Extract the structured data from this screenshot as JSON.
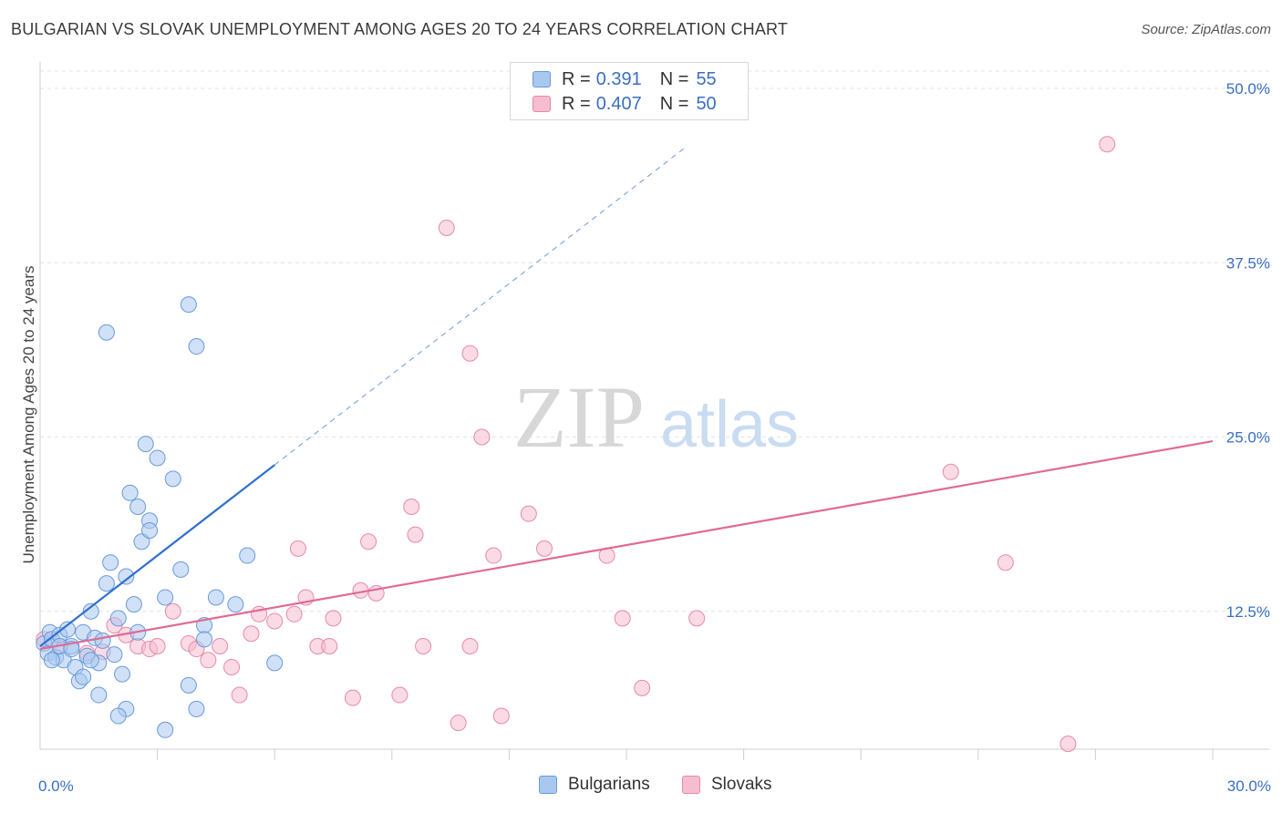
{
  "title": "BULGARIAN VS SLOVAK UNEMPLOYMENT AMONG AGES 20 TO 24 YEARS CORRELATION CHART",
  "source": "Source: ZipAtlas.com",
  "watermark": {
    "zip": "ZIP",
    "atlas": "atlas"
  },
  "legend_stats": [
    {
      "r_label": "R =",
      "r_value": "0.391",
      "n_label": "N =",
      "n_value": "55",
      "color": "#a9c8f0"
    },
    {
      "r_label": "R =",
      "r_value": "0.407",
      "n_label": "N =",
      "n_value": "50",
      "color": "#f6bcd0"
    }
  ],
  "chart_data": {
    "type": "scatter",
    "title": "BULGARIAN VS SLOVAK UNEMPLOYMENT AMONG AGES 20 TO 24 YEARS CORRELATION CHART",
    "xlabel": "",
    "ylabel": "Unemployment Among Ages 20 to 24 years",
    "xlim": [
      0,
      30
    ],
    "ylim": [
      0,
      50
    ],
    "x_tick_labels": [
      "0.0%",
      "30.0%"
    ],
    "y_ticks": [
      12.5,
      25.0,
      37.5,
      50.0
    ],
    "y_tick_labels": [
      "12.5%",
      "25.0%",
      "37.5%",
      "50.0%"
    ],
    "grid": true,
    "legend_position": "bottom",
    "series": [
      {
        "name": "Bulgarians",
        "color": "#a9c8f0",
        "stroke": "#6a9ad8",
        "line_color": "#2f6fcf",
        "trend": {
          "x0": 0,
          "y0": 10.0,
          "x1": 6.0,
          "y1": 23.0,
          "dash_to_x": 16.5
        },
        "points": [
          [
            0.1,
            10.2
          ],
          [
            0.2,
            9.5
          ],
          [
            0.25,
            11.0
          ],
          [
            0.3,
            10.5
          ],
          [
            0.4,
            9.2
          ],
          [
            0.5,
            10.8
          ],
          [
            0.6,
            9.0
          ],
          [
            0.7,
            11.2
          ],
          [
            0.8,
            10.0
          ],
          [
            0.9,
            8.5
          ],
          [
            1.0,
            7.5
          ],
          [
            1.1,
            11.0
          ],
          [
            1.2,
            9.3
          ],
          [
            1.3,
            12.5
          ],
          [
            1.4,
            10.6
          ],
          [
            1.5,
            8.8
          ],
          [
            1.6,
            10.4
          ],
          [
            1.7,
            14.5
          ],
          [
            1.8,
            16.0
          ],
          [
            1.9,
            9.4
          ],
          [
            2.0,
            12.0
          ],
          [
            2.1,
            8.0
          ],
          [
            2.2,
            15.0
          ],
          [
            2.3,
            21.0
          ],
          [
            2.4,
            13.0
          ],
          [
            2.5,
            20.0
          ],
          [
            2.6,
            17.5
          ],
          [
            2.7,
            24.5
          ],
          [
            2.8,
            19.0
          ],
          [
            1.5,
            6.5
          ],
          [
            2.2,
            5.5
          ],
          [
            1.7,
            32.5
          ],
          [
            2.8,
            18.3
          ],
          [
            2.5,
            11.0
          ],
          [
            3.0,
            23.5
          ],
          [
            3.2,
            13.5
          ],
          [
            3.4,
            22.0
          ],
          [
            3.6,
            15.5
          ],
          [
            3.8,
            34.5
          ],
          [
            4.0,
            31.5
          ],
          [
            4.2,
            11.5
          ],
          [
            4.5,
            13.5
          ],
          [
            1.1,
            7.8
          ],
          [
            1.3,
            9.0
          ],
          [
            2.0,
            5.0
          ],
          [
            3.2,
            4.0
          ],
          [
            3.8,
            7.2
          ],
          [
            4.2,
            10.5
          ],
          [
            5.0,
            13.0
          ],
          [
            5.3,
            16.5
          ],
          [
            6.0,
            8.8
          ],
          [
            4.0,
            5.5
          ],
          [
            0.3,
            9.0
          ],
          [
            0.5,
            10.0
          ],
          [
            0.8,
            9.8
          ]
        ]
      },
      {
        "name": "Slovaks",
        "color": "#f6bcd0",
        "stroke": "#e68aaa",
        "line_color": "#e06a95",
        "trend": {
          "x0": 0,
          "y0": 9.8,
          "x1": 30,
          "y1": 24.7
        },
        "points": [
          [
            0.1,
            10.5
          ],
          [
            0.5,
            10.0
          ],
          [
            1.2,
            9.5
          ],
          [
            1.6,
            9.6
          ],
          [
            1.9,
            11.5
          ],
          [
            2.2,
            10.8
          ],
          [
            2.5,
            10.0
          ],
          [
            2.8,
            9.8
          ],
          [
            3.0,
            10.0
          ],
          [
            3.4,
            12.5
          ],
          [
            3.8,
            10.2
          ],
          [
            4.0,
            9.8
          ],
          [
            4.3,
            9.0
          ],
          [
            4.6,
            10.0
          ],
          [
            4.9,
            8.5
          ],
          [
            5.1,
            6.5
          ],
          [
            5.4,
            10.9
          ],
          [
            5.6,
            12.3
          ],
          [
            6.0,
            11.8
          ],
          [
            6.5,
            12.3
          ],
          [
            6.6,
            17.0
          ],
          [
            6.8,
            13.5
          ],
          [
            7.1,
            10.0
          ],
          [
            7.4,
            10.0
          ],
          [
            7.5,
            12.0
          ],
          [
            8.0,
            6.3
          ],
          [
            8.2,
            14.0
          ],
          [
            8.4,
            17.5
          ],
          [
            8.6,
            13.8
          ],
          [
            9.2,
            6.5
          ],
          [
            9.5,
            20.0
          ],
          [
            9.6,
            18.0
          ],
          [
            9.8,
            10.0
          ],
          [
            10.4,
            40.0
          ],
          [
            10.7,
            4.5
          ],
          [
            11.0,
            10.0
          ],
          [
            11.0,
            31.0
          ],
          [
            11.3,
            25.0
          ],
          [
            11.6,
            16.5
          ],
          [
            11.8,
            5.0
          ],
          [
            12.5,
            19.5
          ],
          [
            12.9,
            17.0
          ],
          [
            14.5,
            16.5
          ],
          [
            14.9,
            12.0
          ],
          [
            15.4,
            7.0
          ],
          [
            16.8,
            12.0
          ],
          [
            23.3,
            22.5
          ],
          [
            24.7,
            16.0
          ],
          [
            26.3,
            3.0
          ],
          [
            27.3,
            46.0
          ]
        ]
      }
    ]
  }
}
